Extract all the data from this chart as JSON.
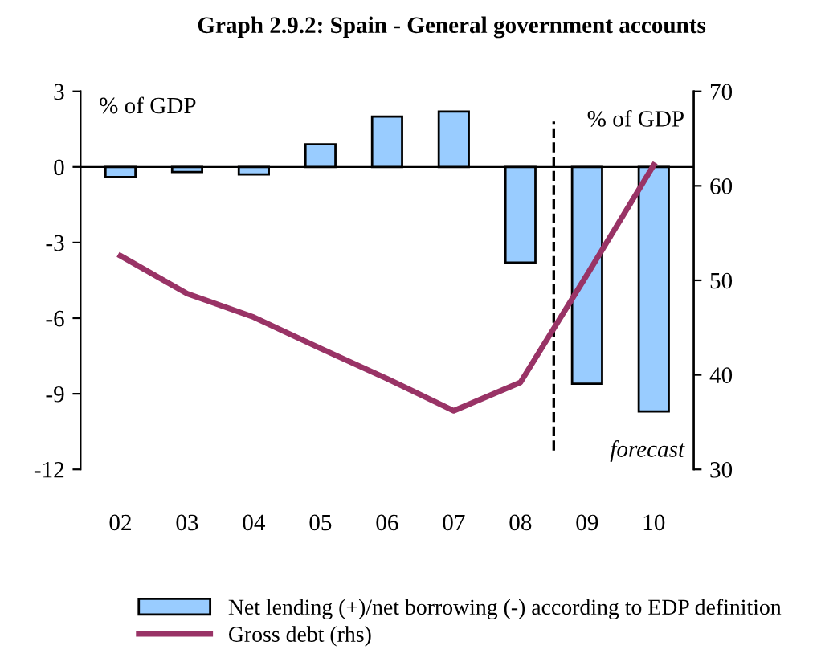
{
  "chart_data": {
    "type": "bar",
    "title": "Graph 2.9.2: Spain - General government accounts",
    "ylabel": "% of GDP",
    "y2label": "% of GDP",
    "x": [
      2002,
      2003,
      2004,
      2005,
      2006,
      2007,
      2008,
      2009,
      2010
    ],
    "series": [
      {
        "name": "Net lending (+)/net borrowing (-) according to EDP definition",
        "color": "#99ccff",
        "values": [
          -0.4,
          -0.2,
          -0.3,
          0.9,
          2.0,
          2.2,
          -3.8,
          -8.6,
          -9.7
        ]
      },
      {
        "name": "Gross debt (rhs)",
        "type": "line",
        "axis": "y2",
        "color": "#993366",
        "values": [
          52.6,
          48.6,
          46.1,
          42.8,
          39.6,
          36.2,
          39.2,
          50.6,
          62.2
        ]
      }
    ],
    "xlim": [
      2001.4,
      2010.6
    ],
    "xticks": [
      {
        "value": 2002,
        "label": "02"
      },
      {
        "value": 2003,
        "label": "03"
      },
      {
        "value": 2004,
        "label": "04"
      },
      {
        "value": 2005,
        "label": "05"
      },
      {
        "value": 2006,
        "label": "06"
      },
      {
        "value": 2007,
        "label": "07"
      },
      {
        "value": 2008,
        "label": "08"
      },
      {
        "value": 2009,
        "label": "09"
      },
      {
        "value": 2010,
        "label": "10"
      }
    ],
    "ylim": [
      -12,
      3
    ],
    "yticks": [
      {
        "value": -12,
        "label": "-12"
      },
      {
        "value": -9,
        "label": "-9"
      },
      {
        "value": -6,
        "label": "-6"
      },
      {
        "value": -3,
        "label": "-3"
      },
      0,
      3
    ],
    "y2lim": [
      30,
      70
    ],
    "y2ticks": [
      30,
      40,
      50,
      60,
      70
    ],
    "ref_lines": [
      {
        "axis": "x",
        "value": 2008.5,
        "color": "#000000",
        "line_style": "dashed"
      },
      {
        "axis": "y",
        "value": 0,
        "color": "#000000",
        "line_style": "solid"
      }
    ],
    "annotations": [
      "forecast"
    ],
    "legend": "bottom",
    "grid": false,
    "marker": "none"
  }
}
